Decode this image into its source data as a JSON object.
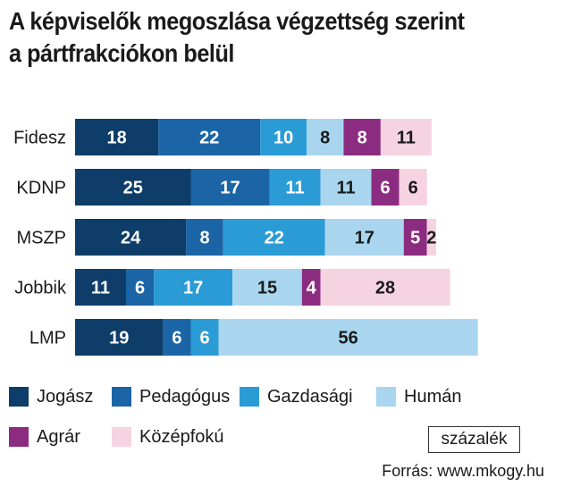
{
  "title_line1": "A képviselők megoszlása végzettség szerint",
  "title_line2": "a pártfrakciókon belül",
  "unit": "százalék",
  "source": "Forrás: www.mkogy.hu",
  "chart_data": {
    "type": "bar",
    "orientation": "horizontal",
    "stacked": true,
    "title": "A képviselők megoszlása végzettség szerint a pártfrakciókon belül",
    "categories": [
      "Fidesz",
      "KDNP",
      "MSZP",
      "Jobbik",
      "LMP"
    ],
    "series": [
      {
        "name": "Jogász",
        "color": "#0d3d68",
        "values": [
          18,
          25,
          24,
          11,
          19
        ]
      },
      {
        "name": "Pedagógus",
        "color": "#1b65a6",
        "values": [
          22,
          17,
          8,
          6,
          6
        ]
      },
      {
        "name": "Gazdasági",
        "color": "#2b9bd6",
        "values": [
          10,
          11,
          22,
          17,
          6
        ]
      },
      {
        "name": "Humán",
        "color": "#a9d6ee",
        "values": [
          8,
          11,
          17,
          15,
          56
        ]
      },
      {
        "name": "Agrár",
        "color": "#8c2c80",
        "values": [
          8,
          6,
          5,
          4,
          0
        ]
      },
      {
        "name": "Középfokú",
        "color": "#f6d3e1",
        "values": [
          11,
          6,
          2,
          28,
          0
        ]
      }
    ],
    "legend_position": "bottom",
    "grid": false
  }
}
